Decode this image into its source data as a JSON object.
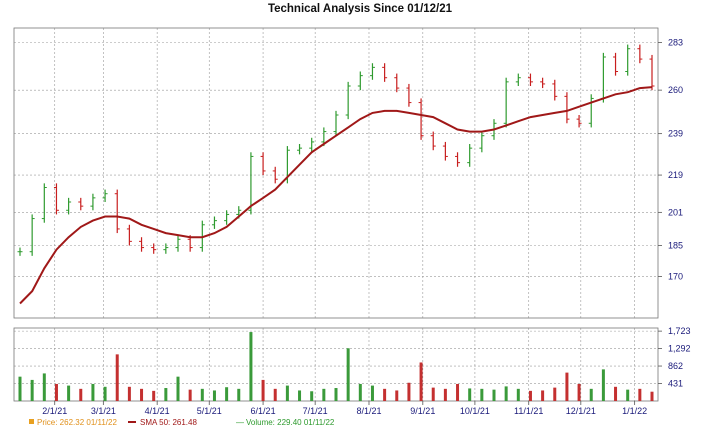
{
  "chart_data": {
    "type": "line",
    "title": "Technical Analysis Since 01/12/21",
    "price_axis": {
      "ticks": [
        283,
        260,
        239,
        219,
        201,
        185,
        170
      ],
      "ylim": [
        150,
        290
      ]
    },
    "volume_axis": {
      "ticks": [
        1723,
        1292,
        862,
        431
      ],
      "tick_labels": [
        "1,723",
        "1,292",
        "862",
        "431"
      ],
      "ylim": [
        0,
        1800
      ]
    },
    "x_ticks": [
      "2/1/21",
      "3/1/21",
      "4/1/21",
      "5/1/21",
      "6/1/21",
      "7/1/21",
      "8/1/21",
      "9/1/21",
      "10/1/21",
      "11/1/21",
      "12/1/21",
      "1/1/22"
    ],
    "start_date": "2021-01-12",
    "end_date": "2022-01-11",
    "legend": {
      "price": "Price: 262.32  01/11/22",
      "sma": "SMA 50: 261.48",
      "volume": "Volume: 229.40  01/11/22"
    },
    "colors": {
      "up": "#2e9a2e",
      "down": "#c81e1e",
      "sma": "#a01818",
      "volume_up": "#3a9a3a",
      "volume_down": "#c43030",
      "grid": "#9a9a9a",
      "axis_label": "#1a1a7a"
    },
    "series": [
      {
        "name": "Price",
        "x": [
          "2021-01-12",
          "2021-01-19",
          "2021-01-26",
          "2021-02-02",
          "2021-02-09",
          "2021-02-16",
          "2021-02-23",
          "2021-03-02",
          "2021-03-09",
          "2021-03-16",
          "2021-03-23",
          "2021-03-30",
          "2021-04-06",
          "2021-04-13",
          "2021-04-20",
          "2021-04-27",
          "2021-05-04",
          "2021-05-11",
          "2021-05-18",
          "2021-05-25",
          "2021-06-01",
          "2021-06-08",
          "2021-06-15",
          "2021-06-22",
          "2021-06-29",
          "2021-07-06",
          "2021-07-13",
          "2021-07-20",
          "2021-07-27",
          "2021-08-03",
          "2021-08-10",
          "2021-08-17",
          "2021-08-24",
          "2021-08-31",
          "2021-09-07",
          "2021-09-14",
          "2021-09-21",
          "2021-09-28",
          "2021-10-05",
          "2021-10-12",
          "2021-10-19",
          "2021-10-26",
          "2021-11-02",
          "2021-11-09",
          "2021-11-16",
          "2021-11-23",
          "2021-11-30",
          "2021-12-07",
          "2021-12-14",
          "2021-12-21",
          "2021-12-28",
          "2022-01-04",
          "2022-01-11"
        ],
        "values": [
          182,
          198,
          213,
          202,
          206,
          204,
          208,
          210,
          193,
          187,
          184,
          183,
          184,
          188,
          184,
          195,
          197,
          200,
          202,
          228,
          221,
          217,
          231,
          232,
          235,
          240,
          248,
          262,
          267,
          271,
          266,
          261,
          254,
          238,
          233,
          228,
          225,
          232,
          238,
          244,
          264,
          266,
          264,
          263,
          257,
          246,
          244,
          256,
          276,
          269,
          280,
          275,
          262
        ]
      },
      {
        "name": "SMA 50",
        "x": [
          "2021-01-12",
          "2021-01-19",
          "2021-01-26",
          "2021-02-02",
          "2021-02-09",
          "2021-02-16",
          "2021-02-23",
          "2021-03-02",
          "2021-03-09",
          "2021-03-16",
          "2021-03-23",
          "2021-03-30",
          "2021-04-06",
          "2021-04-13",
          "2021-04-20",
          "2021-04-27",
          "2021-05-04",
          "2021-05-11",
          "2021-05-18",
          "2021-05-25",
          "2021-06-01",
          "2021-06-08",
          "2021-06-15",
          "2021-06-22",
          "2021-06-29",
          "2021-07-06",
          "2021-07-13",
          "2021-07-20",
          "2021-07-27",
          "2021-08-03",
          "2021-08-10",
          "2021-08-17",
          "2021-08-24",
          "2021-08-31",
          "2021-09-07",
          "2021-09-14",
          "2021-09-21",
          "2021-09-28",
          "2021-10-05",
          "2021-10-12",
          "2021-10-19",
          "2021-10-26",
          "2021-11-02",
          "2021-11-09",
          "2021-11-16",
          "2021-11-23",
          "2021-11-30",
          "2021-12-07",
          "2021-12-14",
          "2021-12-21",
          "2021-12-28",
          "2022-01-04",
          "2022-01-11"
        ],
        "values": [
          157,
          163,
          174,
          183,
          189,
          194,
          197,
          199,
          199,
          198,
          195,
          193,
          191,
          190,
          189,
          189,
          191,
          194,
          199,
          204,
          208,
          212,
          218,
          224,
          230,
          234,
          238,
          242,
          246,
          249,
          250,
          250,
          249,
          248,
          247,
          244,
          241,
          240,
          240,
          241,
          243,
          245,
          247,
          248,
          249,
          250,
          252,
          254,
          256,
          258,
          259,
          261,
          261.48
        ]
      },
      {
        "name": "Volume",
        "x": [
          "2021-01-12",
          "2021-01-19",
          "2021-01-26",
          "2021-02-02",
          "2021-02-09",
          "2021-02-16",
          "2021-02-23",
          "2021-03-02",
          "2021-03-09",
          "2021-03-16",
          "2021-03-23",
          "2021-03-30",
          "2021-04-06",
          "2021-04-13",
          "2021-04-20",
          "2021-04-27",
          "2021-05-04",
          "2021-05-11",
          "2021-05-18",
          "2021-05-25",
          "2021-06-01",
          "2021-06-08",
          "2021-06-15",
          "2021-06-22",
          "2021-06-29",
          "2021-07-06",
          "2021-07-13",
          "2021-07-20",
          "2021-07-27",
          "2021-08-03",
          "2021-08-10",
          "2021-08-17",
          "2021-08-24",
          "2021-08-31",
          "2021-09-07",
          "2021-09-14",
          "2021-09-21",
          "2021-09-28",
          "2021-10-05",
          "2021-10-12",
          "2021-10-19",
          "2021-10-26",
          "2021-11-02",
          "2021-11-09",
          "2021-11-16",
          "2021-11-23",
          "2021-11-30",
          "2021-12-07",
          "2021-12-14",
          "2021-12-21",
          "2021-12-28",
          "2022-01-04",
          "2022-01-11"
        ],
        "values": [
          600,
          520,
          680,
          420,
          380,
          300,
          420,
          350,
          1150,
          350,
          300,
          250,
          320,
          600,
          280,
          300,
          260,
          340,
          300,
          1700,
          520,
          300,
          380,
          260,
          240,
          300,
          320,
          1300,
          420,
          380,
          300,
          260,
          450,
          950,
          330,
          300,
          420,
          310,
          300,
          280,
          360,
          300,
          250,
          260,
          330,
          700,
          420,
          300,
          780,
          350,
          280,
          300,
          229.4
        ]
      }
    ]
  }
}
